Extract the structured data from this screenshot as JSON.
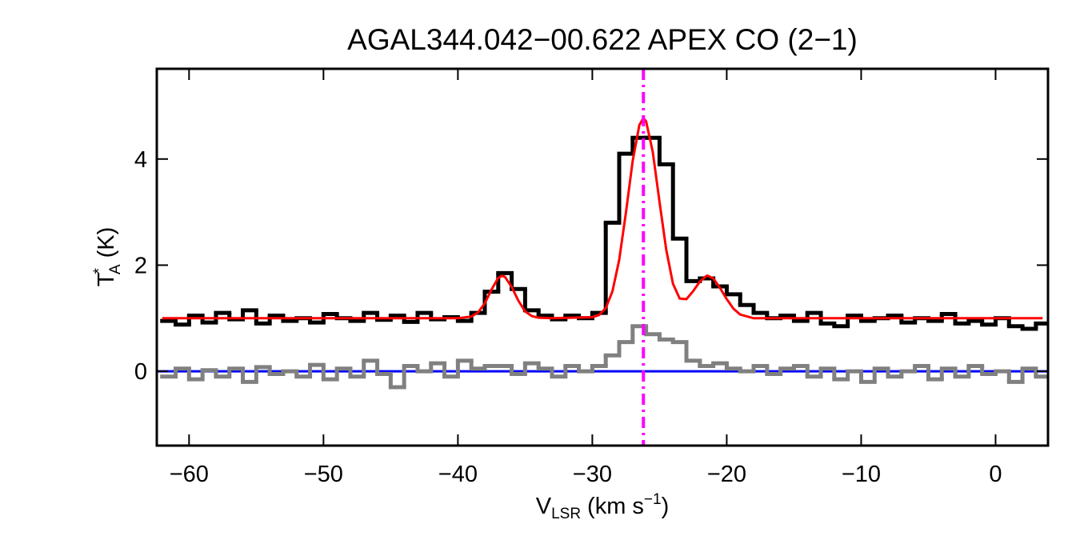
{
  "chart_data": {
    "type": "spectrum",
    "title": "AGAL344.042−00.622  APEX CO (2−1)",
    "xlabel": {
      "main": "V",
      "sub": "LSR",
      "unit": "(km s",
      "sup": "−1",
      "close": ")"
    },
    "ylabel": {
      "main": "T",
      "sup": "*",
      "sub": "A",
      "unit": "(K)"
    },
    "xlim": [
      -62.4,
      3.9
    ],
    "ylim": [
      -1.4,
      5.7
    ],
    "xticks": [
      {
        "value": -60,
        "label": "−60"
      },
      {
        "value": -50,
        "label": "−50"
      },
      {
        "value": -40,
        "label": "−40"
      },
      {
        "value": -30,
        "label": "−30"
      },
      {
        "value": -20,
        "label": "−20"
      },
      {
        "value": -10,
        "label": "−10"
      },
      0
    ],
    "yticks": [
      0,
      2,
      4
    ],
    "x": [
      -61.5,
      -60.5,
      -59.5,
      -58.5,
      -57.5,
      -56.5,
      -55.5,
      -54.5,
      -53.5,
      -52.5,
      -51.5,
      -50.5,
      -49.5,
      -48.5,
      -47.5,
      -46.5,
      -45.5,
      -44.5,
      -43.5,
      -42.5,
      -41.5,
      -40.5,
      -39.5,
      -38.5,
      -37.5,
      -36.5,
      -35.5,
      -34.5,
      -33.5,
      -32.5,
      -31.5,
      -30.5,
      -29.5,
      -28.5,
      -27.5,
      -26.5,
      -25.5,
      -24.5,
      -23.5,
      -22.5,
      -21.5,
      -20.5,
      -19.5,
      -18.5,
      -17.5,
      -16.5,
      -15.5,
      -14.5,
      -13.5,
      -12.5,
      -11.5,
      -10.5,
      -9.5,
      -8.5,
      -7.5,
      -6.5,
      -5.5,
      -4.5,
      -3.5,
      -2.5,
      -1.5,
      -0.5,
      0.5,
      1.5,
      2.5,
      3.5
    ],
    "series": [
      {
        "name": "spectrum",
        "style": "step",
        "color": "#000000",
        "values": [
          0.95,
          0.88,
          1.05,
          0.92,
          1.1,
          0.98,
          1.15,
          0.9,
          1.05,
          0.95,
          1.0,
          0.92,
          1.08,
          1.0,
          0.95,
          1.1,
          0.97,
          1.05,
          0.93,
          1.1,
          0.98,
          1.02,
          0.95,
          1.1,
          1.5,
          1.85,
          1.55,
          1.15,
          1.05,
          0.98,
          1.05,
          1.0,
          1.1,
          2.8,
          4.1,
          4.4,
          4.4,
          3.9,
          2.5,
          1.7,
          1.75,
          1.6,
          1.45,
          1.25,
          1.1,
          1.0,
          1.05,
          0.95,
          1.1,
          0.9,
          0.85,
          1.05,
          0.95,
          1.0,
          1.05,
          0.92,
          1.0,
          0.95,
          1.08,
          0.9,
          0.95,
          0.88,
          1.0,
          0.85,
          0.8,
          0.9
        ]
      },
      {
        "name": "residual",
        "style": "step",
        "color": "#808080",
        "values": [
          -0.1,
          0.05,
          -0.15,
          0.02,
          -0.1,
          0.05,
          -0.2,
          0.08,
          -0.05,
          0.0,
          -0.1,
          0.12,
          -0.15,
          0.05,
          -0.1,
          0.2,
          -0.05,
          -0.3,
          0.1,
          0.0,
          0.15,
          -0.1,
          0.2,
          0.05,
          0.1,
          0.1,
          -0.05,
          0.15,
          0.05,
          -0.1,
          0.1,
          0.0,
          0.1,
          0.3,
          0.55,
          0.85,
          0.7,
          0.6,
          0.55,
          0.2,
          0.1,
          0.15,
          0.05,
          0.0,
          0.1,
          -0.05,
          0.05,
          0.1,
          -0.1,
          0.05,
          -0.15,
          0.0,
          -0.2,
          0.05,
          -0.1,
          0.0,
          0.1,
          -0.15,
          0.05,
          -0.1,
          0.1,
          -0.05,
          0.0,
          -0.2,
          0.05,
          -0.1
        ]
      },
      {
        "name": "fit",
        "style": "line",
        "color": "#ff0000",
        "x": [
          -62,
          -40,
          -39,
          -38.5,
          -38,
          -37.5,
          -37,
          -36.7,
          -36.5,
          -36,
          -35.5,
          -35,
          -34.5,
          -34,
          -33,
          -30,
          -29.5,
          -29,
          -28.5,
          -28,
          -27.5,
          -27,
          -26.5,
          -26.2,
          -26,
          -25.5,
          -25,
          -24.5,
          -24,
          -23.5,
          -23,
          -22.5,
          -22,
          -21.5,
          -21.4,
          -21,
          -20.5,
          -20,
          -19.5,
          -19,
          -18,
          3.5
        ],
        "values": [
          1.0,
          1.0,
          1.03,
          1.11,
          1.28,
          1.54,
          1.76,
          1.8,
          1.78,
          1.59,
          1.33,
          1.13,
          1.04,
          1.01,
          1.0,
          1.02,
          1.06,
          1.19,
          1.51,
          2.1,
          2.99,
          3.96,
          4.64,
          4.77,
          4.71,
          4.13,
          3.19,
          2.29,
          1.65,
          1.37,
          1.36,
          1.51,
          1.69,
          1.8,
          1.8,
          1.75,
          1.57,
          1.36,
          1.18,
          1.07,
          1.0,
          1.0
        ]
      }
    ],
    "hline": {
      "value": 0,
      "color": "#0000ff"
    },
    "vline": {
      "value": -26.2,
      "color": "#ff00ff"
    }
  }
}
